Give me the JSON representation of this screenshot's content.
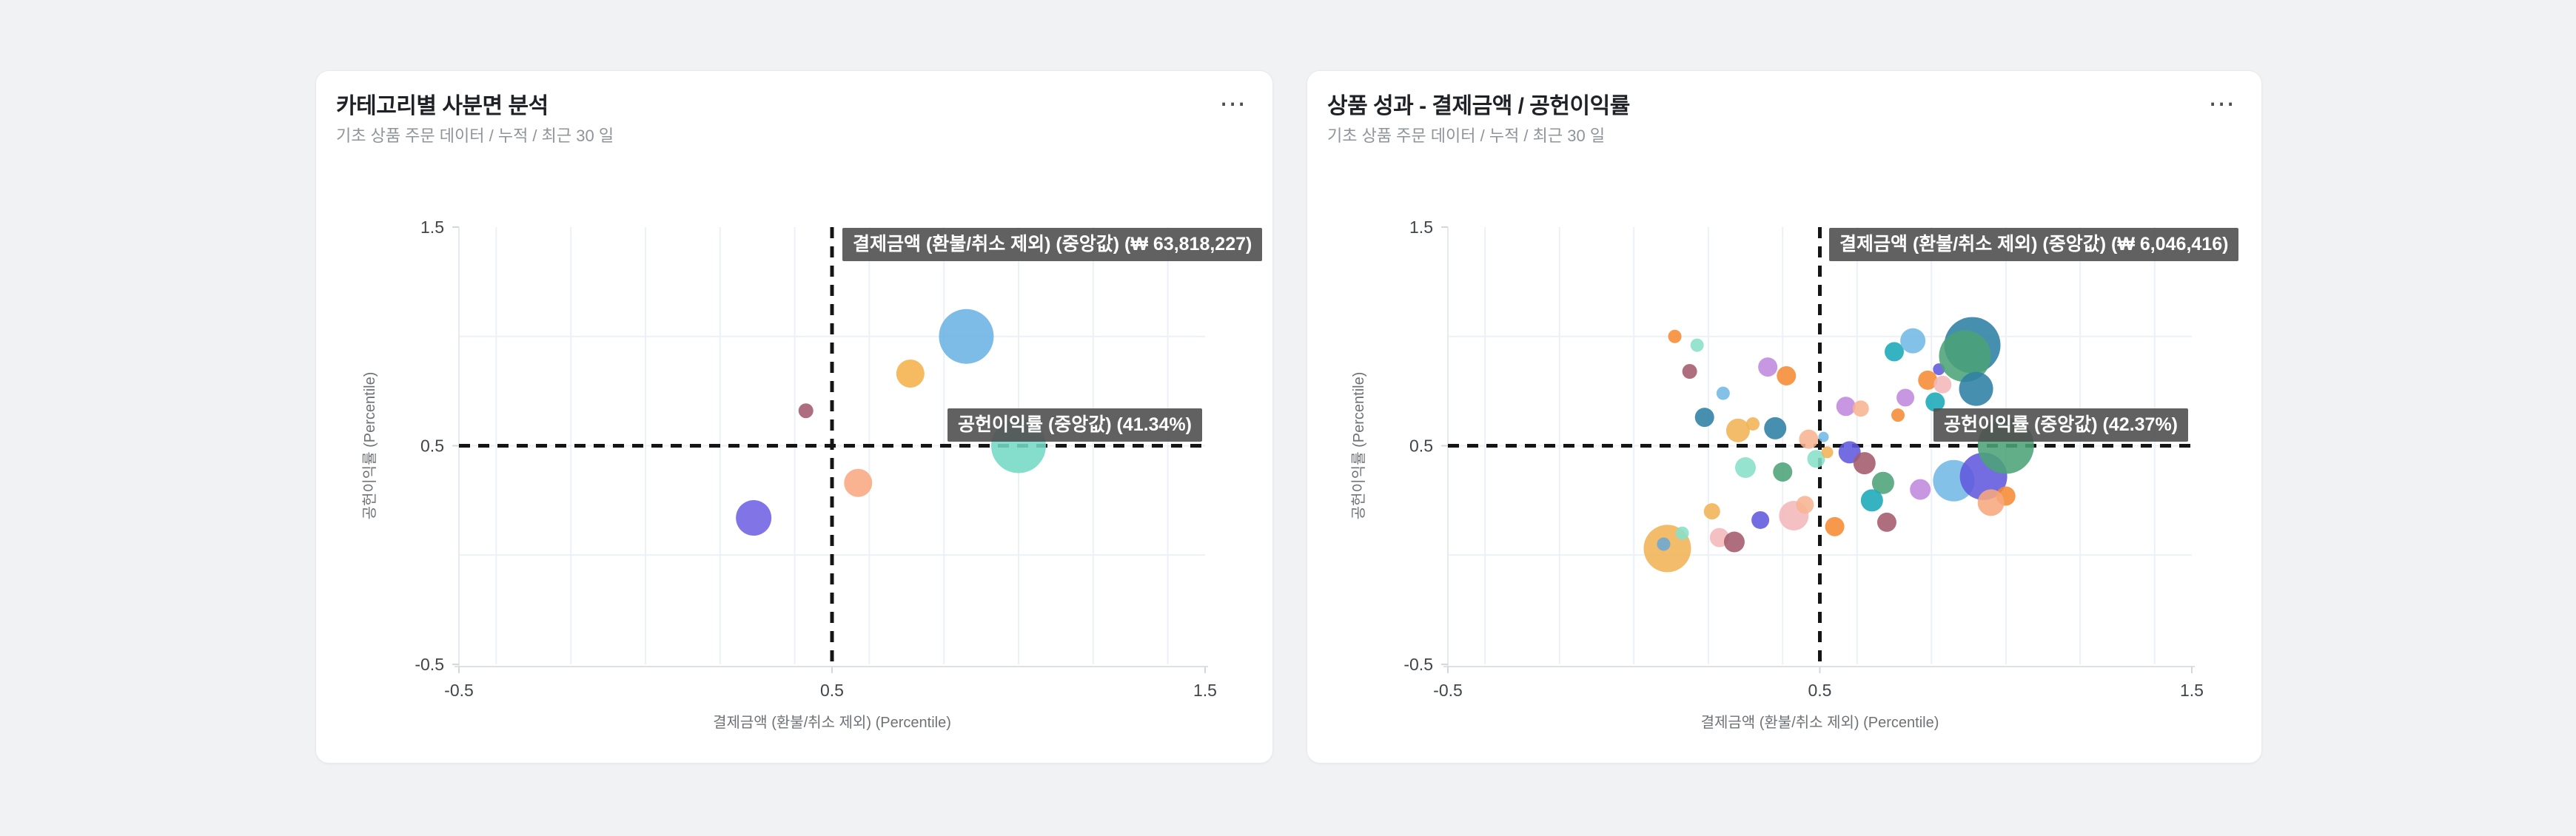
{
  "page": {
    "background": "#f1f2f4"
  },
  "cards": [
    {
      "title": "카테고리별 사분면 분석",
      "subtitle": "기초 상품 주문 데이터 / 누적 / 최근 30 일",
      "menu_icon": "⋯"
    },
    {
      "title": "상품 성과 - 결제금액 / 공헌이익률",
      "subtitle": "기초 상품 주문 데이터 / 누적 / 최근 30 일",
      "menu_icon": "⋯"
    }
  ],
  "chart_data": [
    {
      "type": "scatter",
      "title": "카테고리별 사분면 분석",
      "xlabel": "결제금액 (환불/취소 제외) (Percentile)",
      "ylabel": "공헌이익률 (Percentile)",
      "xlim": [
        -0.5,
        1.5
      ],
      "ylim": [
        -0.5,
        1.5
      ],
      "xticks": [
        -0.5,
        0.5,
        1.5
      ],
      "yticks": [
        -0.5,
        0.5,
        1.5
      ],
      "x_gridlines": [
        -0.4,
        -0.2,
        0,
        0.2,
        0.4,
        0.6,
        0.8,
        1,
        1.2,
        1.4
      ],
      "y_gridlines": [
        0,
        0.5,
        1
      ],
      "grid": true,
      "median_x": {
        "percentile": 0.5,
        "label": "결제금액 (환불/취소 제외) (중앙값) (₩ 63,818,227)"
      },
      "median_y": {
        "percentile": 0.5,
        "label": "공헌이익률 (중앙값) (41.34%)"
      },
      "points": [
        {
          "x": 0.86,
          "y": 1.0,
          "r": 37,
          "color": "#6ab3e2"
        },
        {
          "x": 0.71,
          "y": 0.83,
          "r": 19,
          "color": "#f5b04a"
        },
        {
          "x": 0.43,
          "y": 0.66,
          "r": 10,
          "color": "#a25a6e"
        },
        {
          "x": 1.0,
          "y": 0.5,
          "r": 37,
          "color": "#74d9c5"
        },
        {
          "x": 0.57,
          "y": 0.33,
          "r": 19,
          "color": "#f9a981"
        },
        {
          "x": 0.29,
          "y": 0.17,
          "r": 24,
          "color": "#6e61e4"
        }
      ]
    },
    {
      "type": "scatter",
      "title": "상품 성과 - 결제금액 / 공헌이익률",
      "xlabel": "결제금액 (환불/취소 제외) (Percentile)",
      "ylabel": "공헌이익률 (Percentile)",
      "xlim": [
        -0.5,
        1.5
      ],
      "ylim": [
        -0.5,
        1.5
      ],
      "xticks": [
        -0.5,
        0.5,
        1.5
      ],
      "yticks": [
        -0.5,
        0.5,
        1.5
      ],
      "x_gridlines": [
        -0.4,
        -0.2,
        0,
        0.2,
        0.4,
        0.6,
        0.8,
        1,
        1.2,
        1.4
      ],
      "y_gridlines": [
        0,
        0.5,
        1
      ],
      "grid": true,
      "median_x": {
        "percentile": 0.5,
        "label": "결제금액 (환불/취소 제외) (중앙값) (₩ 6,046,416)"
      },
      "median_y": {
        "percentile": 0.5,
        "label": "공헌이익률 (중앙값) (42.37%)"
      },
      "points": [
        {
          "x": 0.11,
          "y": 1.0,
          "r": 9,
          "color": "#f68b33"
        },
        {
          "x": 0.17,
          "y": 0.96,
          "r": 9,
          "color": "#87dfc9"
        },
        {
          "x": 0.15,
          "y": 0.84,
          "r": 10,
          "color": "#a35a6b"
        },
        {
          "x": 0.36,
          "y": 0.86,
          "r": 13,
          "color": "#c089dd"
        },
        {
          "x": 0.41,
          "y": 0.82,
          "r": 13,
          "color": "#f68b33"
        },
        {
          "x": 0.24,
          "y": 0.74,
          "r": 9,
          "color": "#72b8e6"
        },
        {
          "x": 0.19,
          "y": 0.63,
          "r": 13,
          "color": "#2e7fa3"
        },
        {
          "x": 0.28,
          "y": 0.57,
          "r": 16,
          "color": "#f0b355"
        },
        {
          "x": 0.32,
          "y": 0.6,
          "r": 9,
          "color": "#f0b355"
        },
        {
          "x": 0.38,
          "y": 0.58,
          "r": 15,
          "color": "#2e7fa3"
        },
        {
          "x": 0.47,
          "y": 0.53,
          "r": 13,
          "color": "#f7b492"
        },
        {
          "x": 0.51,
          "y": 0.54,
          "r": 7,
          "color": "#72b8e6"
        },
        {
          "x": 0.57,
          "y": 0.68,
          "r": 13,
          "color": "#c089dd"
        },
        {
          "x": 0.61,
          "y": 0.67,
          "r": 11,
          "color": "#f7b492"
        },
        {
          "x": 0.7,
          "y": 0.93,
          "r": 13,
          "color": "#19a8b8"
        },
        {
          "x": 0.75,
          "y": 0.98,
          "r": 17,
          "color": "#72b8e6"
        },
        {
          "x": 0.82,
          "y": 0.85,
          "r": 8,
          "color": "#6158dd"
        },
        {
          "x": 0.91,
          "y": 0.96,
          "r": 38,
          "color": "#2e7fa3"
        },
        {
          "x": 0.89,
          "y": 0.91,
          "r": 35,
          "color": "#4ba377"
        },
        {
          "x": 0.79,
          "y": 0.8,
          "r": 13,
          "color": "#f68b33"
        },
        {
          "x": 0.83,
          "y": 0.78,
          "r": 12,
          "color": "#f3b7b9"
        },
        {
          "x": 0.92,
          "y": 0.76,
          "r": 23,
          "color": "#2e7fa3"
        },
        {
          "x": 0.73,
          "y": 0.72,
          "r": 12,
          "color": "#c089dd"
        },
        {
          "x": 0.81,
          "y": 0.7,
          "r": 13,
          "color": "#19a8b8"
        },
        {
          "x": 0.71,
          "y": 0.64,
          "r": 9,
          "color": "#f68b33"
        },
        {
          "x": 0.58,
          "y": 0.47,
          "r": 15,
          "color": "#6158dd"
        },
        {
          "x": 0.49,
          "y": 0.44,
          "r": 12,
          "color": "#87dfc9"
        },
        {
          "x": 0.52,
          "y": 0.47,
          "r": 8,
          "color": "#f0b355"
        },
        {
          "x": 0.62,
          "y": 0.42,
          "r": 15,
          "color": "#a35a6b"
        },
        {
          "x": 0.3,
          "y": 0.4,
          "r": 14,
          "color": "#87dfc9"
        },
        {
          "x": 0.4,
          "y": 0.38,
          "r": 13,
          "color": "#4ba377"
        },
        {
          "x": 0.67,
          "y": 0.33,
          "r": 15,
          "color": "#4ba377"
        },
        {
          "x": 0.64,
          "y": 0.25,
          "r": 15,
          "color": "#19a8b8"
        },
        {
          "x": 0.68,
          "y": 0.15,
          "r": 13,
          "color": "#a35a6b"
        },
        {
          "x": 0.77,
          "y": 0.3,
          "r": 14,
          "color": "#c089dd"
        },
        {
          "x": 0.86,
          "y": 0.34,
          "r": 28,
          "color": "#72b8e6"
        },
        {
          "x": 0.94,
          "y": 0.36,
          "r": 32,
          "color": "#6158dd"
        },
        {
          "x": 1.0,
          "y": 0.27,
          "r": 13,
          "color": "#f68b33"
        },
        {
          "x": 0.96,
          "y": 0.24,
          "r": 18,
          "color": "#f7a77d"
        },
        {
          "x": 1.0,
          "y": 0.5,
          "r": 38,
          "color": "#4ba377"
        },
        {
          "x": 0.09,
          "y": 0.03,
          "r": 32,
          "color": "#f0b355"
        },
        {
          "x": 0.08,
          "y": 0.05,
          "r": 9,
          "color": "#69a8d6"
        },
        {
          "x": 0.13,
          "y": 0.1,
          "r": 9,
          "color": "#87dfc9"
        },
        {
          "x": 0.21,
          "y": 0.2,
          "r": 11,
          "color": "#f0b355"
        },
        {
          "x": 0.23,
          "y": 0.08,
          "r": 13,
          "color": "#f3b7b9"
        },
        {
          "x": 0.27,
          "y": 0.06,
          "r": 14,
          "color": "#a35a6b"
        },
        {
          "x": 0.34,
          "y": 0.16,
          "r": 12,
          "color": "#6158dd"
        },
        {
          "x": 0.43,
          "y": 0.18,
          "r": 20,
          "color": "#f3b7b9"
        },
        {
          "x": 0.46,
          "y": 0.23,
          "r": 12,
          "color": "#f7b492"
        },
        {
          "x": 0.54,
          "y": 0.13,
          "r": 13,
          "color": "#f68b33"
        }
      ]
    }
  ]
}
